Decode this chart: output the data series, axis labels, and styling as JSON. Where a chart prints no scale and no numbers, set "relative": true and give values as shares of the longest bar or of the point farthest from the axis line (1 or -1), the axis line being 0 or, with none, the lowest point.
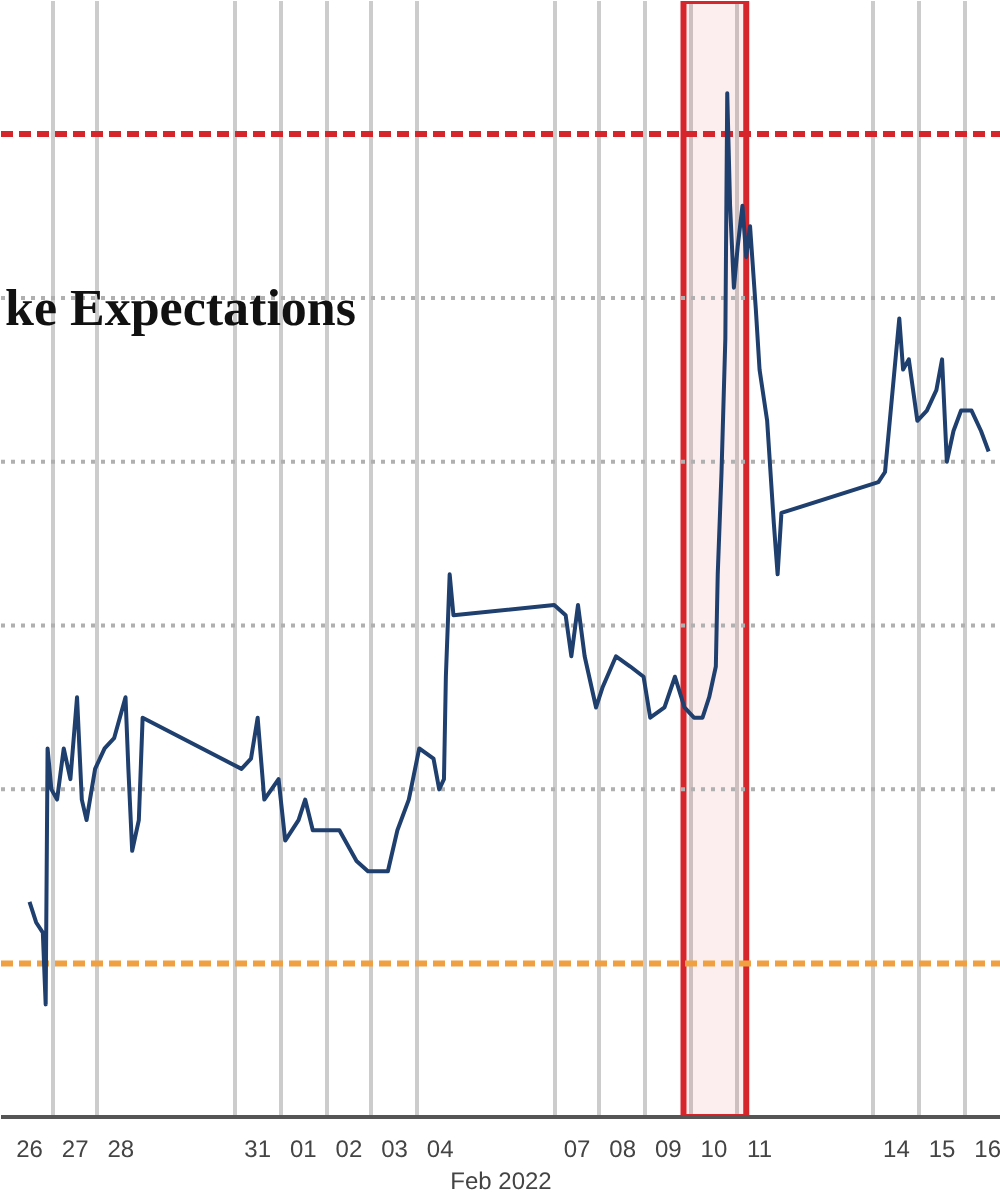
{
  "chart_data": {
    "type": "line",
    "relative": true,
    "annotations": [
      "ke Expectations"
    ],
    "xlabel": "Feb 2022",
    "x": [
      "2022-01-26T12:00",
      "2022-01-26T15:30",
      "2022-01-26T19:00",
      "2022-01-26T20:30",
      "2022-01-26T21:30",
      "2022-01-26T23:30",
      "2022-01-27T02:30",
      "2022-01-27T06:00",
      "2022-01-27T09:30",
      "2022-01-27T13:00",
      "2022-01-27T15:30",
      "2022-01-27T18:00",
      "2022-01-27T22:30",
      "2022-01-28T03:30",
      "2022-01-28T08:30",
      "2022-01-28T14:30",
      "2022-01-28T16:00",
      "2022-01-28T18:00",
      "2022-01-28T21:30",
      "2022-01-28T23:30",
      "2022-01-31T03:30",
      "2022-01-31T08:30",
      "2022-01-31T12:00",
      "2022-01-31T15:30",
      "2022-01-31T23:00",
      "2022-02-01T02:30",
      "2022-02-01T09:30",
      "2022-02-01T13:00",
      "2022-02-01T17:00",
      "2022-02-02T00:00",
      "2022-02-02T07:00",
      "2022-02-02T16:00",
      "2022-02-02T22:00",
      "2022-02-03T08:30",
      "2022-02-03T13:30",
      "2022-02-03T19:30",
      "2022-02-04T01:00",
      "2022-02-04T08:30",
      "2022-02-04T11:30",
      "2022-02-04T14:00",
      "2022-02-04T15:00",
      "2022-02-04T17:00",
      "2022-02-04T19:00",
      "2022-02-07T00:00",
      "2022-02-07T06:00",
      "2022-02-07T09:00",
      "2022-02-07T12:30",
      "2022-02-07T16:00",
      "2022-02-07T22:00",
      "2022-02-08T01:30",
      "2022-02-08T08:30",
      "2022-02-08T16:00",
      "2022-02-08T23:00",
      "2022-02-09T02:30",
      "2022-02-09T10:00",
      "2022-02-09T15:30",
      "2022-02-09T20:30",
      "2022-02-10T01:30",
      "2022-02-10T06:00",
      "2022-02-10T09:30",
      "2022-02-10T13:00",
      "2022-02-10T14:00",
      "2022-02-10T16:00",
      "2022-02-10T18:00",
      "2022-02-10T19:00",
      "2022-02-10T20:30",
      "2022-02-10T22:30",
      "2022-02-11T00:30",
      "2022-02-11T03:00",
      "2022-02-11T05:00",
      "2022-02-11T07:00",
      "2022-02-11T10:00",
      "2022-02-11T12:00",
      "2022-02-11T16:00",
      "2022-02-11T19:30",
      "2022-02-11T21:30",
      "2022-02-11T23:30",
      "2022-02-14T02:30",
      "2022-02-14T06:00",
      "2022-02-14T10:00",
      "2022-02-14T13:30",
      "2022-02-14T15:30",
      "2022-02-14T18:30",
      "2022-02-14T23:00",
      "2022-02-15T04:00",
      "2022-02-15T09:00",
      "2022-02-15T12:00",
      "2022-02-15T14:30",
      "2022-02-15T18:00",
      "2022-02-15T22:00",
      "2022-02-16T03:30",
      "2022-02-16T08:30",
      "2022-02-16T12:30"
    ],
    "series": [
      {
        "color": "#1f3f6e",
        "values": [
          0.21,
          0.19,
          0.18,
          0.11,
          0.36,
          0.32,
          0.31,
          0.36,
          0.33,
          0.41,
          0.31,
          0.29,
          0.34,
          0.36,
          0.37,
          0.41,
          0.34,
          0.26,
          0.29,
          0.39,
          0.34,
          0.35,
          0.39,
          0.31,
          0.33,
          0.27,
          0.29,
          0.31,
          0.28,
          0.28,
          0.28,
          0.25,
          0.24,
          0.24,
          0.28,
          0.31,
          0.36,
          0.35,
          0.32,
          0.33,
          0.43,
          0.53,
          0.49,
          0.5,
          0.49,
          0.45,
          0.5,
          0.45,
          0.4,
          0.42,
          0.45,
          0.44,
          0.43,
          0.39,
          0.4,
          0.43,
          0.4,
          0.39,
          0.39,
          0.41,
          0.44,
          0.53,
          0.63,
          0.76,
          1.0,
          0.89,
          0.81,
          0.85,
          0.89,
          0.84,
          0.87,
          0.79,
          0.73,
          0.68,
          0.58,
          0.53,
          0.59,
          0.62,
          0.63,
          0.71,
          0.78,
          0.73,
          0.74,
          0.68,
          0.69,
          0.71,
          0.74,
          0.64,
          0.67,
          0.69,
          0.69,
          0.67,
          0.65
        ]
      }
    ],
    "xlim": [
      "2022-01-25T21:00",
      "2022-02-16T19:00"
    ],
    "xticks": [
      {
        "value": "2022-01-26T12:00",
        "label": "26"
      },
      {
        "value": "2022-01-27",
        "label": null
      },
      {
        "value": "2022-01-27T12:00",
        "label": "27"
      },
      {
        "value": "2022-01-28",
        "label": null
      },
      {
        "value": "2022-01-28T12:00",
        "label": "28"
      },
      {
        "value": "2022-01-31",
        "label": null
      },
      {
        "value": "2022-01-31T12:00",
        "label": "31"
      },
      {
        "value": "2022-02-01",
        "label": null
      },
      {
        "value": "2022-02-01T12:00",
        "label": "01"
      },
      {
        "value": "2022-02-02",
        "label": null
      },
      {
        "value": "2022-02-02T12:00",
        "label": "02"
      },
      {
        "value": "2022-02-03",
        "label": null
      },
      {
        "value": "2022-02-03T12:00",
        "label": "03"
      },
      {
        "value": "2022-02-04",
        "label": null
      },
      {
        "value": "2022-02-04T12:00",
        "label": "04"
      },
      {
        "value": "2022-02-07",
        "label": null
      },
      {
        "value": "2022-02-07T12:00",
        "label": "07"
      },
      {
        "value": "2022-02-08",
        "label": null
      },
      {
        "value": "2022-02-08T12:00",
        "label": "08"
      },
      {
        "value": "2022-02-09",
        "label": null
      },
      {
        "value": "2022-02-09T12:00",
        "label": "09"
      },
      {
        "value": "2022-02-10",
        "label": null
      },
      {
        "value": "2022-02-10T12:00",
        "label": "10"
      },
      {
        "value": "2022-02-11",
        "label": null
      },
      {
        "value": "2022-02-11T12:00",
        "label": "11"
      },
      {
        "value": "2022-02-14",
        "label": null
      },
      {
        "value": "2022-02-14T12:00",
        "label": "14"
      },
      {
        "value": "2022-02-15",
        "label": null
      },
      {
        "value": "2022-02-15T12:00",
        "label": "15"
      },
      {
        "value": "2022-02-16",
        "label": null
      },
      {
        "value": "2022-02-16T12:00",
        "label": "16"
      }
    ],
    "grid": "x",
    "ref_lines": [
      {
        "axis": "y",
        "value": 0.96,
        "color": "#d7262b",
        "line_style": "dashed"
      },
      {
        "axis": "y",
        "value": 0.15,
        "color": "#f0a040",
        "line_style": "dashed"
      },
      {
        "axis": "y",
        "value": 0.8,
        "color": "#b0b0b0",
        "line_style": "dotted"
      },
      {
        "axis": "y",
        "value": 0.64,
        "color": "#b0b0b0",
        "line_style": "dotted"
      },
      {
        "axis": "y",
        "value": 0.48,
        "color": "#b0b0b0",
        "line_style": "dotted"
      },
      {
        "axis": "y",
        "value": 0.32,
        "color": "#b0b0b0",
        "line_style": "dotted"
      }
    ],
    "bands": [
      {
        "axis": "x",
        "from": "2022-02-09T20:00",
        "to": "2022-02-11T05:00",
        "color": "#d7262b"
      }
    ]
  }
}
